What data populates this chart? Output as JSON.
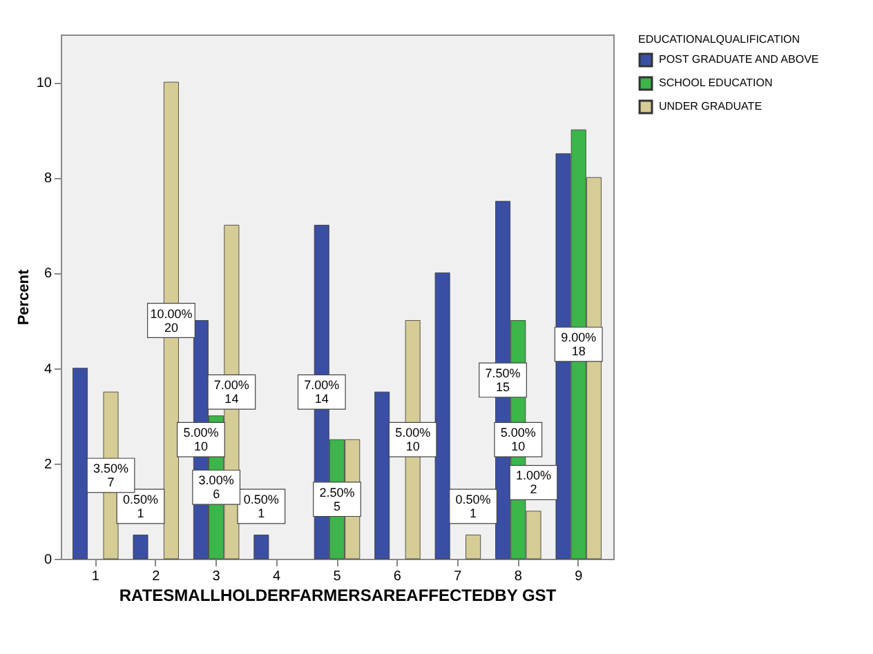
{
  "chart_data": {
    "type": "bar",
    "xlabel": "RATESMALLHOLDERFARMERSAREAFFECTEDBY GST",
    "ylabel": "Percent",
    "legend_title": "EDUCATIONALQUALIFICATION",
    "legend": "top right",
    "grid": false,
    "categories": [
      "1",
      "2",
      "3",
      "4",
      "5",
      "6",
      "7",
      "8",
      "9"
    ],
    "ylim": [
      0,
      11
    ],
    "yticks": [
      0,
      2,
      4,
      6,
      8,
      10
    ],
    "series": [
      {
        "name": "POST GRADUATE AND ABOVE",
        "color": "#3a4fa3",
        "values": [
          4,
          0.5,
          5,
          0.5,
          7,
          3.5,
          6,
          7.5,
          8.5
        ],
        "value_labels": [
          null,
          "0.50% 1",
          "5.00% 10",
          "0.50% 1",
          "7.00% 14",
          null,
          null,
          "7.50% 15",
          null
        ]
      },
      {
        "name": "SCHOOL EDUCATION",
        "color": "#3cb54a",
        "values": [
          null,
          null,
          3,
          null,
          2.5,
          null,
          null,
          5,
          9
        ],
        "value_labels": [
          null,
          null,
          "3.00% 6",
          null,
          "2.50% 5",
          null,
          null,
          "5.00% 10",
          "9.00% 18"
        ]
      },
      {
        "name": "UNDER GRADUATE",
        "color": "#d6cc96",
        "values": [
          3.5,
          10,
          7,
          null,
          2.5,
          5,
          0.5,
          1,
          8
        ],
        "value_labels": [
          "3.50% 7",
          "10.00% 20",
          "7.00% 14",
          null,
          null,
          "5.00% 10",
          "0.50% 1",
          "1.00% 2",
          null
        ]
      }
    ]
  }
}
